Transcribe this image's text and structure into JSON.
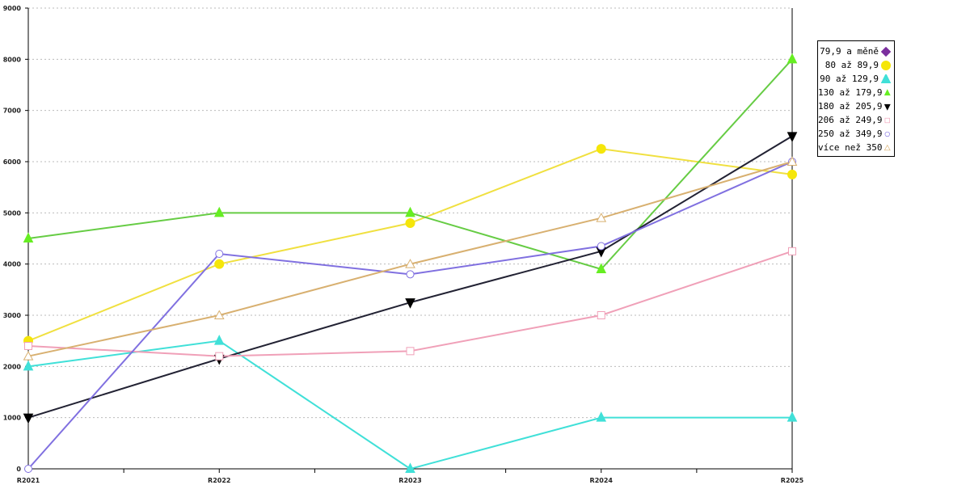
{
  "chart_data": {
    "type": "line",
    "categories": [
      "R2021",
      "R2022",
      "R2023",
      "R2024",
      "R2025"
    ],
    "ylim": [
      0,
      9000
    ],
    "yticks": [
      0,
      1000,
      2000,
      3000,
      4000,
      5000,
      6000,
      7000,
      8000,
      9000
    ],
    "grid": true,
    "legend_position": "right",
    "series": [
      {
        "name": "79,9 a měně",
        "color": "#7b2f9e",
        "marker": "diamond",
        "values": [
          null,
          null,
          null,
          null,
          null
        ]
      },
      {
        "name": "80 až 89,9",
        "color": "#f0e040",
        "marker": "circle-filled",
        "marker_color": "#f5e60a",
        "values": [
          2500,
          4000,
          4800,
          6250,
          5750
        ]
      },
      {
        "name": "90 až 129,9",
        "color": "#40e0d8",
        "marker": "triangle-up-filled",
        "values": [
          2000,
          2500,
          0,
          1000,
          1000
        ]
      },
      {
        "name": "130 až 179,9",
        "color": "#66cc44",
        "marker": "triangle-up-filled",
        "marker_color": "#66ee22",
        "values": [
          4500,
          5000,
          5000,
          3900,
          8000
        ]
      },
      {
        "name": "180 až 205,9",
        "color": "#222233",
        "marker": "triangle-down-filled",
        "marker_color": "#000000",
        "values": [
          1000,
          2150,
          3250,
          4250,
          6500
        ]
      },
      {
        "name": "206 až 249,9",
        "color": "#f0a0b8",
        "marker": "square-open",
        "values": [
          2400,
          2200,
          2300,
          3000,
          4250
        ]
      },
      {
        "name": "250 až 349,9",
        "color": "#8070e0",
        "marker": "circle-open",
        "values": [
          0,
          4200,
          3800,
          4350,
          6000
        ]
      },
      {
        "name": "více než 350",
        "color": "#d8b070",
        "marker": "triangle-up-open",
        "values": [
          2200,
          3000,
          4000,
          4900,
          6000
        ]
      }
    ]
  }
}
